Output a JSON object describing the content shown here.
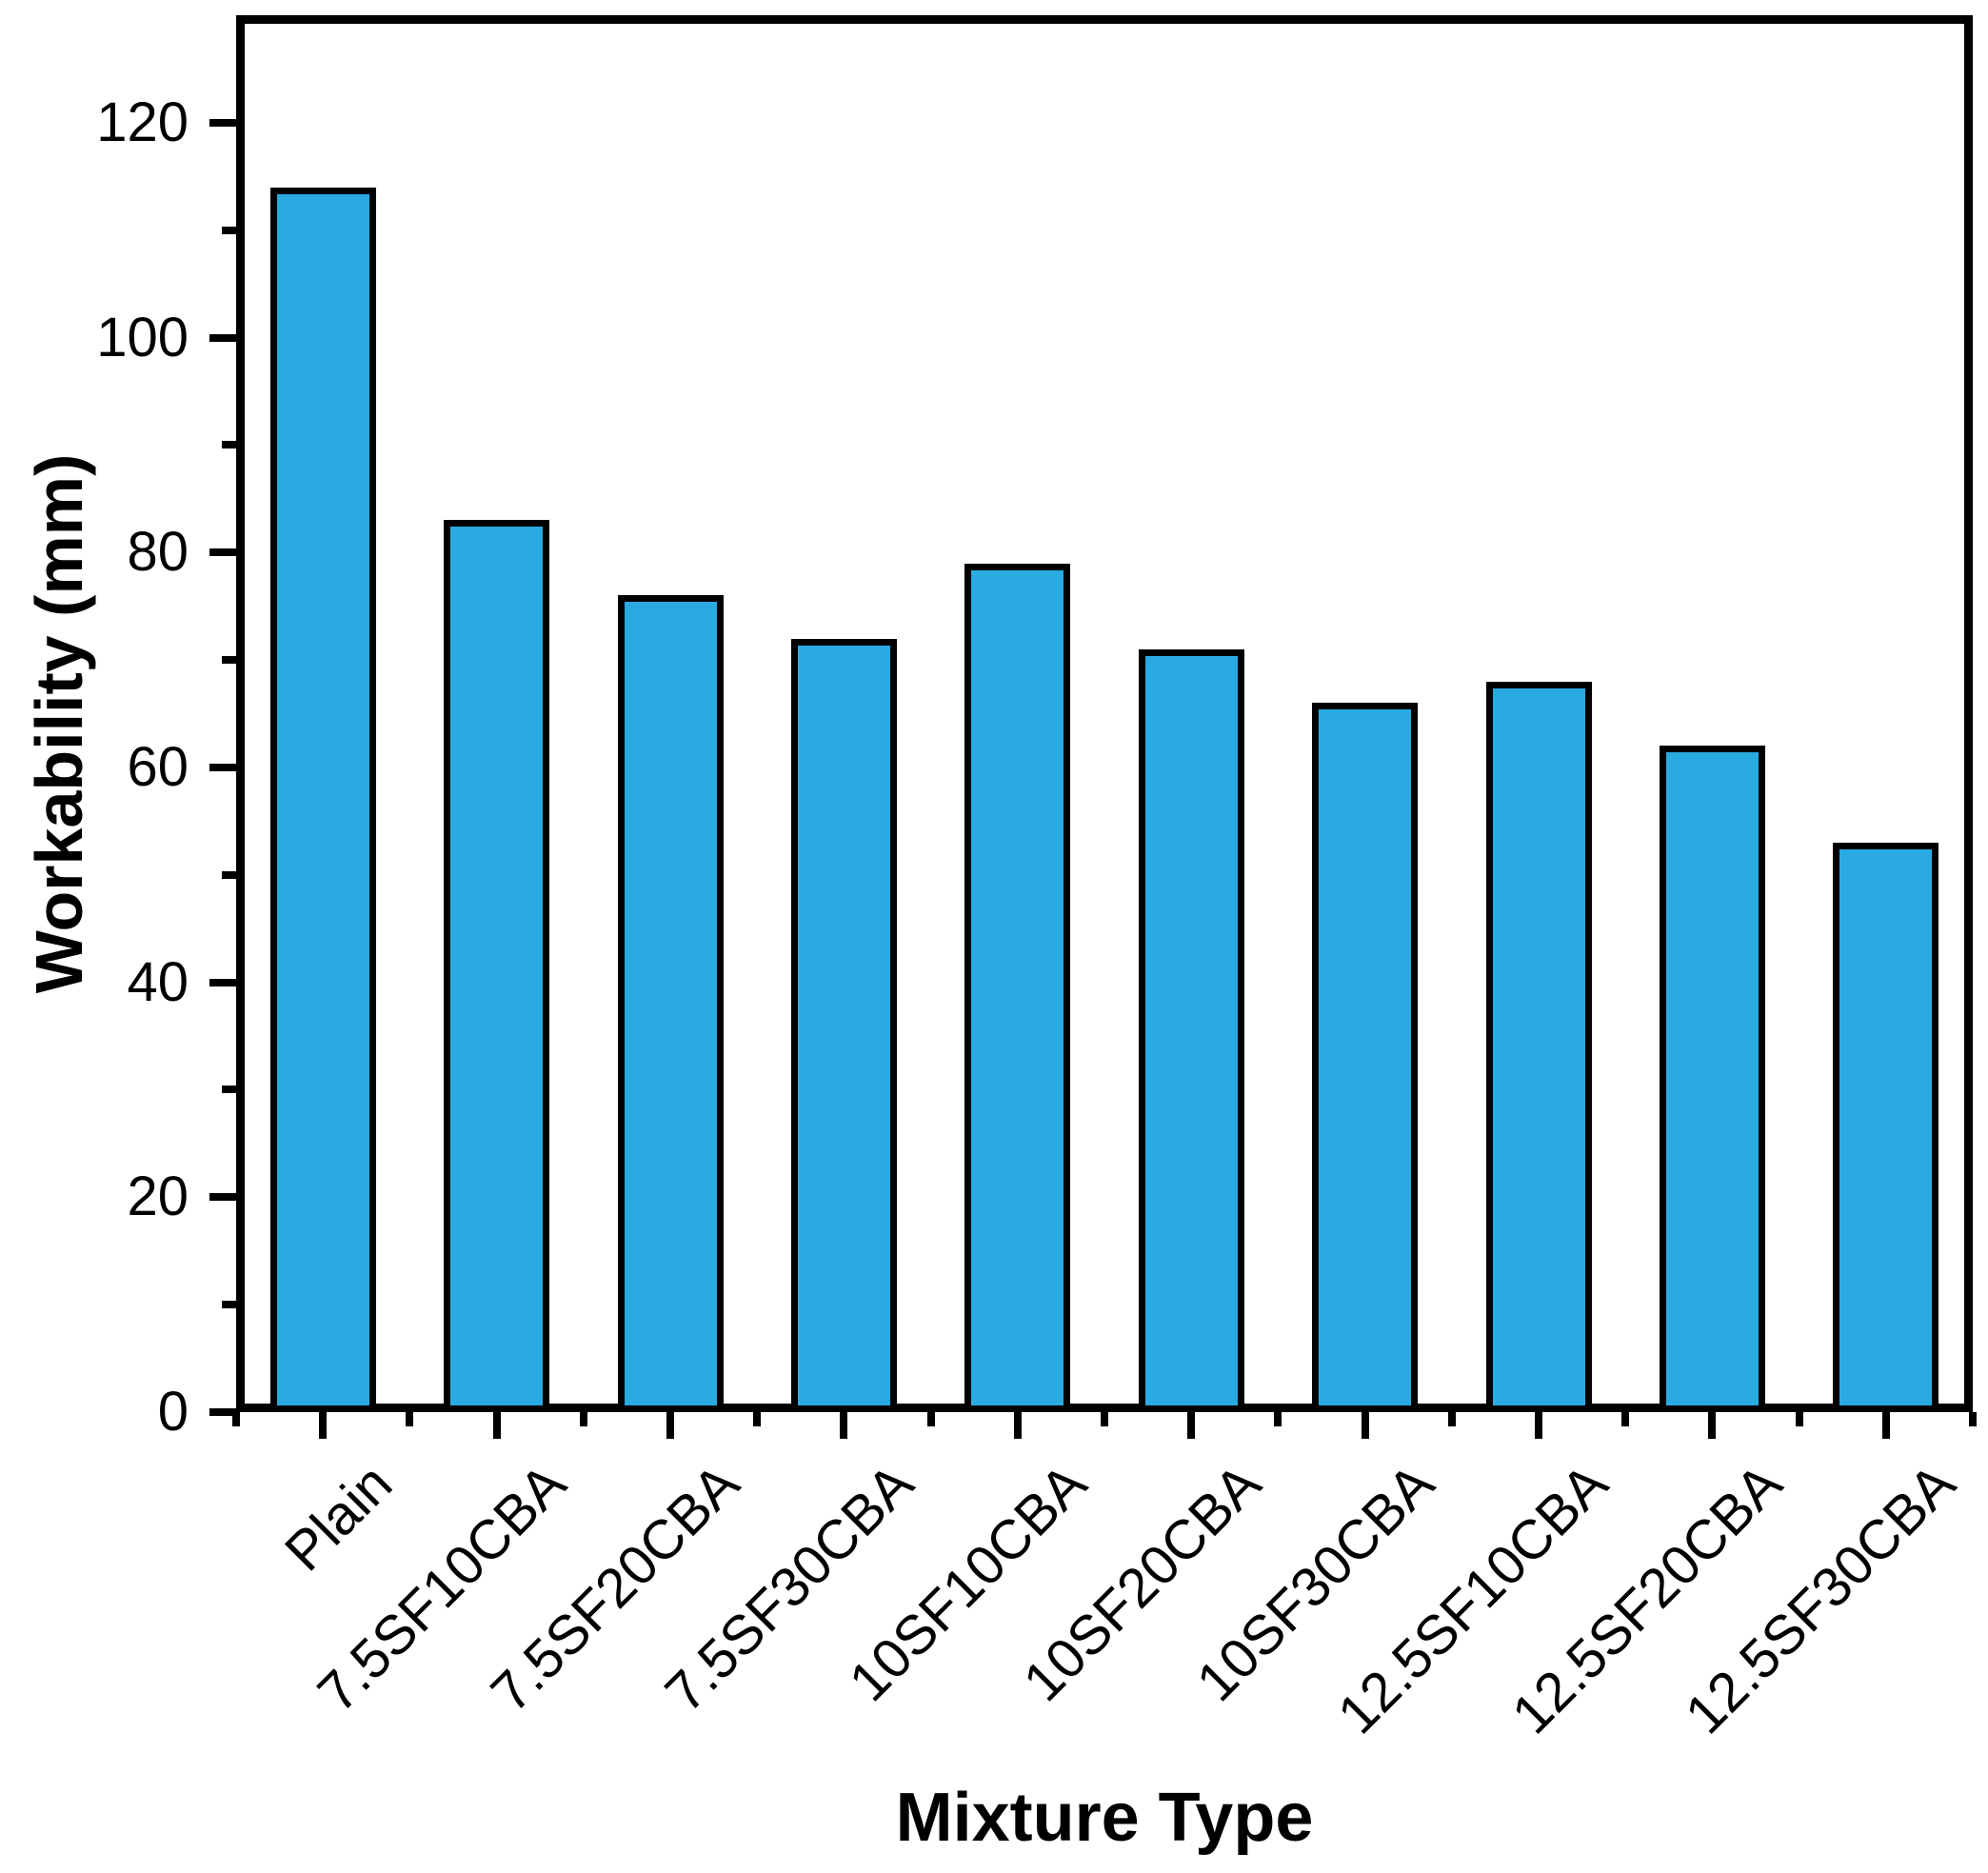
{
  "chart_data": {
    "type": "bar",
    "title": "",
    "xlabel": "Mixture Type",
    "ylabel": "Workability (mm)",
    "categories": [
      "Plain",
      "7.5SF10CBA",
      "7.5SF20CBA",
      "7.5SF30CBA",
      "10SF10CBA",
      "10SF20CBA",
      "10SF30CBA",
      "12.5SF10CBA",
      "12.5SF20CBA",
      "12.5SF30CBA"
    ],
    "values": [
      114,
      83,
      76,
      72,
      79,
      71,
      66,
      68,
      62,
      53
    ],
    "ylim": [
      0,
      130
    ],
    "yticks_major": [
      0,
      20,
      40,
      60,
      80,
      100,
      120
    ],
    "yticks_minor": [
      10,
      30,
      50,
      70,
      90,
      110
    ],
    "grid": false,
    "legend": "none",
    "bar_color": "#29abe2",
    "bar_border_color": "#000000",
    "axis_color": "#000000",
    "text_color": "#000000",
    "background_color": "#ffffff"
  }
}
